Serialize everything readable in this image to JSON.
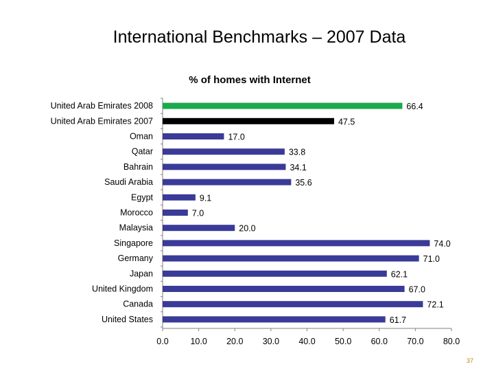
{
  "slide": {
    "title": "International Benchmarks – 2007 Data",
    "page_number": "37"
  },
  "colors": {
    "highlight_2008": "#1aaa4a",
    "highlight_2007": "#000000",
    "default_bar": "#3a3a98",
    "axis": "#808080"
  },
  "chart_data": {
    "type": "bar",
    "orientation": "horizontal",
    "title": "% of homes  with Internet",
    "categories": [
      "United Arab Emirates 2008",
      "United Arab Emirates 2007",
      "Oman",
      "Qatar",
      "Bahrain",
      "Saudi Arabia",
      "Egypt",
      "Morocco",
      "Malaysia",
      "Singapore",
      "Germany",
      "Japan",
      "United Kingdom",
      "Canada",
      "United States"
    ],
    "values": [
      66.4,
      47.5,
      17.0,
      33.8,
      34.1,
      35.6,
      9.1,
      7.0,
      20.0,
      74.0,
      71.0,
      62.1,
      67.0,
      72.1,
      61.7
    ],
    "value_labels": [
      "66.4",
      "47.5",
      "17.0",
      "33.8",
      "34.1",
      "35.6",
      "9.1",
      "7.0",
      "20.0",
      "74.0",
      "71.0",
      "62.1",
      "67.0",
      "72.1",
      "61.7"
    ],
    "bar_colors": [
      "highlight_2008",
      "highlight_2007",
      "default_bar",
      "default_bar",
      "default_bar",
      "default_bar",
      "default_bar",
      "default_bar",
      "default_bar",
      "default_bar",
      "default_bar",
      "default_bar",
      "default_bar",
      "default_bar",
      "default_bar"
    ],
    "xlim": [
      0,
      80
    ],
    "xticks": [
      "0.0",
      "10.0",
      "20.0",
      "30.0",
      "40.0",
      "50.0",
      "60.0",
      "70.0",
      "80.0"
    ],
    "xlabel": "",
    "ylabel": "",
    "grid": false,
    "legend": "none"
  }
}
